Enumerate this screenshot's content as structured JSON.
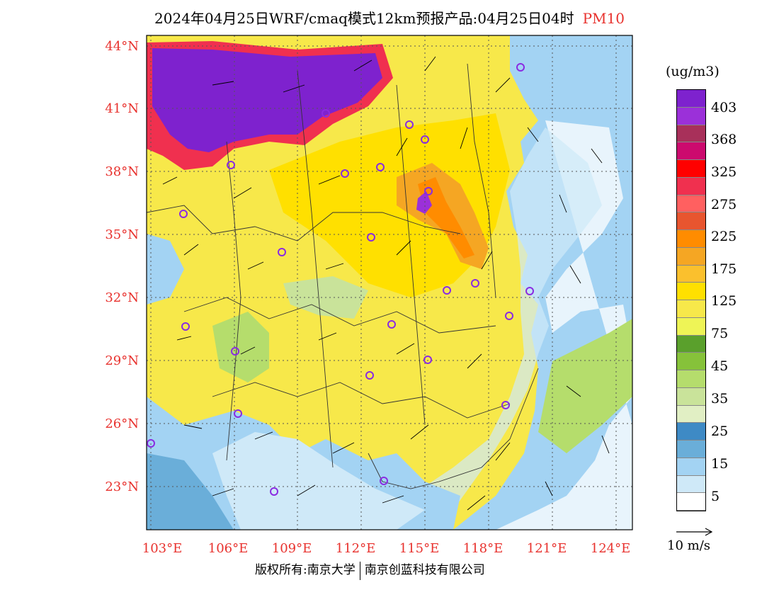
{
  "title": {
    "main": "2024年04月25日WRF/cmaq模式12km预报产品:04月25日04时",
    "pollutant": "PM10"
  },
  "map": {
    "lat_labels": [
      "44°N",
      "41°N",
      "38°N",
      "35°N",
      "32°N",
      "29°N",
      "26°N",
      "23°N"
    ],
    "lon_labels": [
      "103°E",
      "106°E",
      "109°E",
      "112°E",
      "115°E",
      "118°E",
      "121°E",
      "124°E"
    ],
    "lat_range": [
      21.0,
      44.5
    ],
    "lon_range": [
      103.0,
      124.0
    ]
  },
  "colorbar": {
    "unit": "(ug/m3)",
    "labels": [
      "403",
      "368",
      "325",
      "275",
      "225",
      "175",
      "125",
      "75",
      "45",
      "35",
      "25",
      "15",
      "5"
    ],
    "colors": [
      "#7e22ce",
      "#9b30d9",
      "#a8305a",
      "#cc0a6e",
      "#ff0000",
      "#f0304f",
      "#ff6060",
      "#e8552f",
      "#ff8c00",
      "#f5a623",
      "#fbc02d",
      "#ffe000",
      "#f7e84a",
      "#eef456",
      "#5aa02c",
      "#86c23a",
      "#b5dd6c",
      "#c9e39a",
      "#e1efc4",
      "#3e8ac5",
      "#6aaed9",
      "#a3d3f3",
      "#cfe9f8",
      "#ffffff"
    ]
  },
  "vector_reference": "10 m/s",
  "copyright": {
    "left": "版权所有:南京大学",
    "right": "南京创蓝科技有限公司"
  }
}
